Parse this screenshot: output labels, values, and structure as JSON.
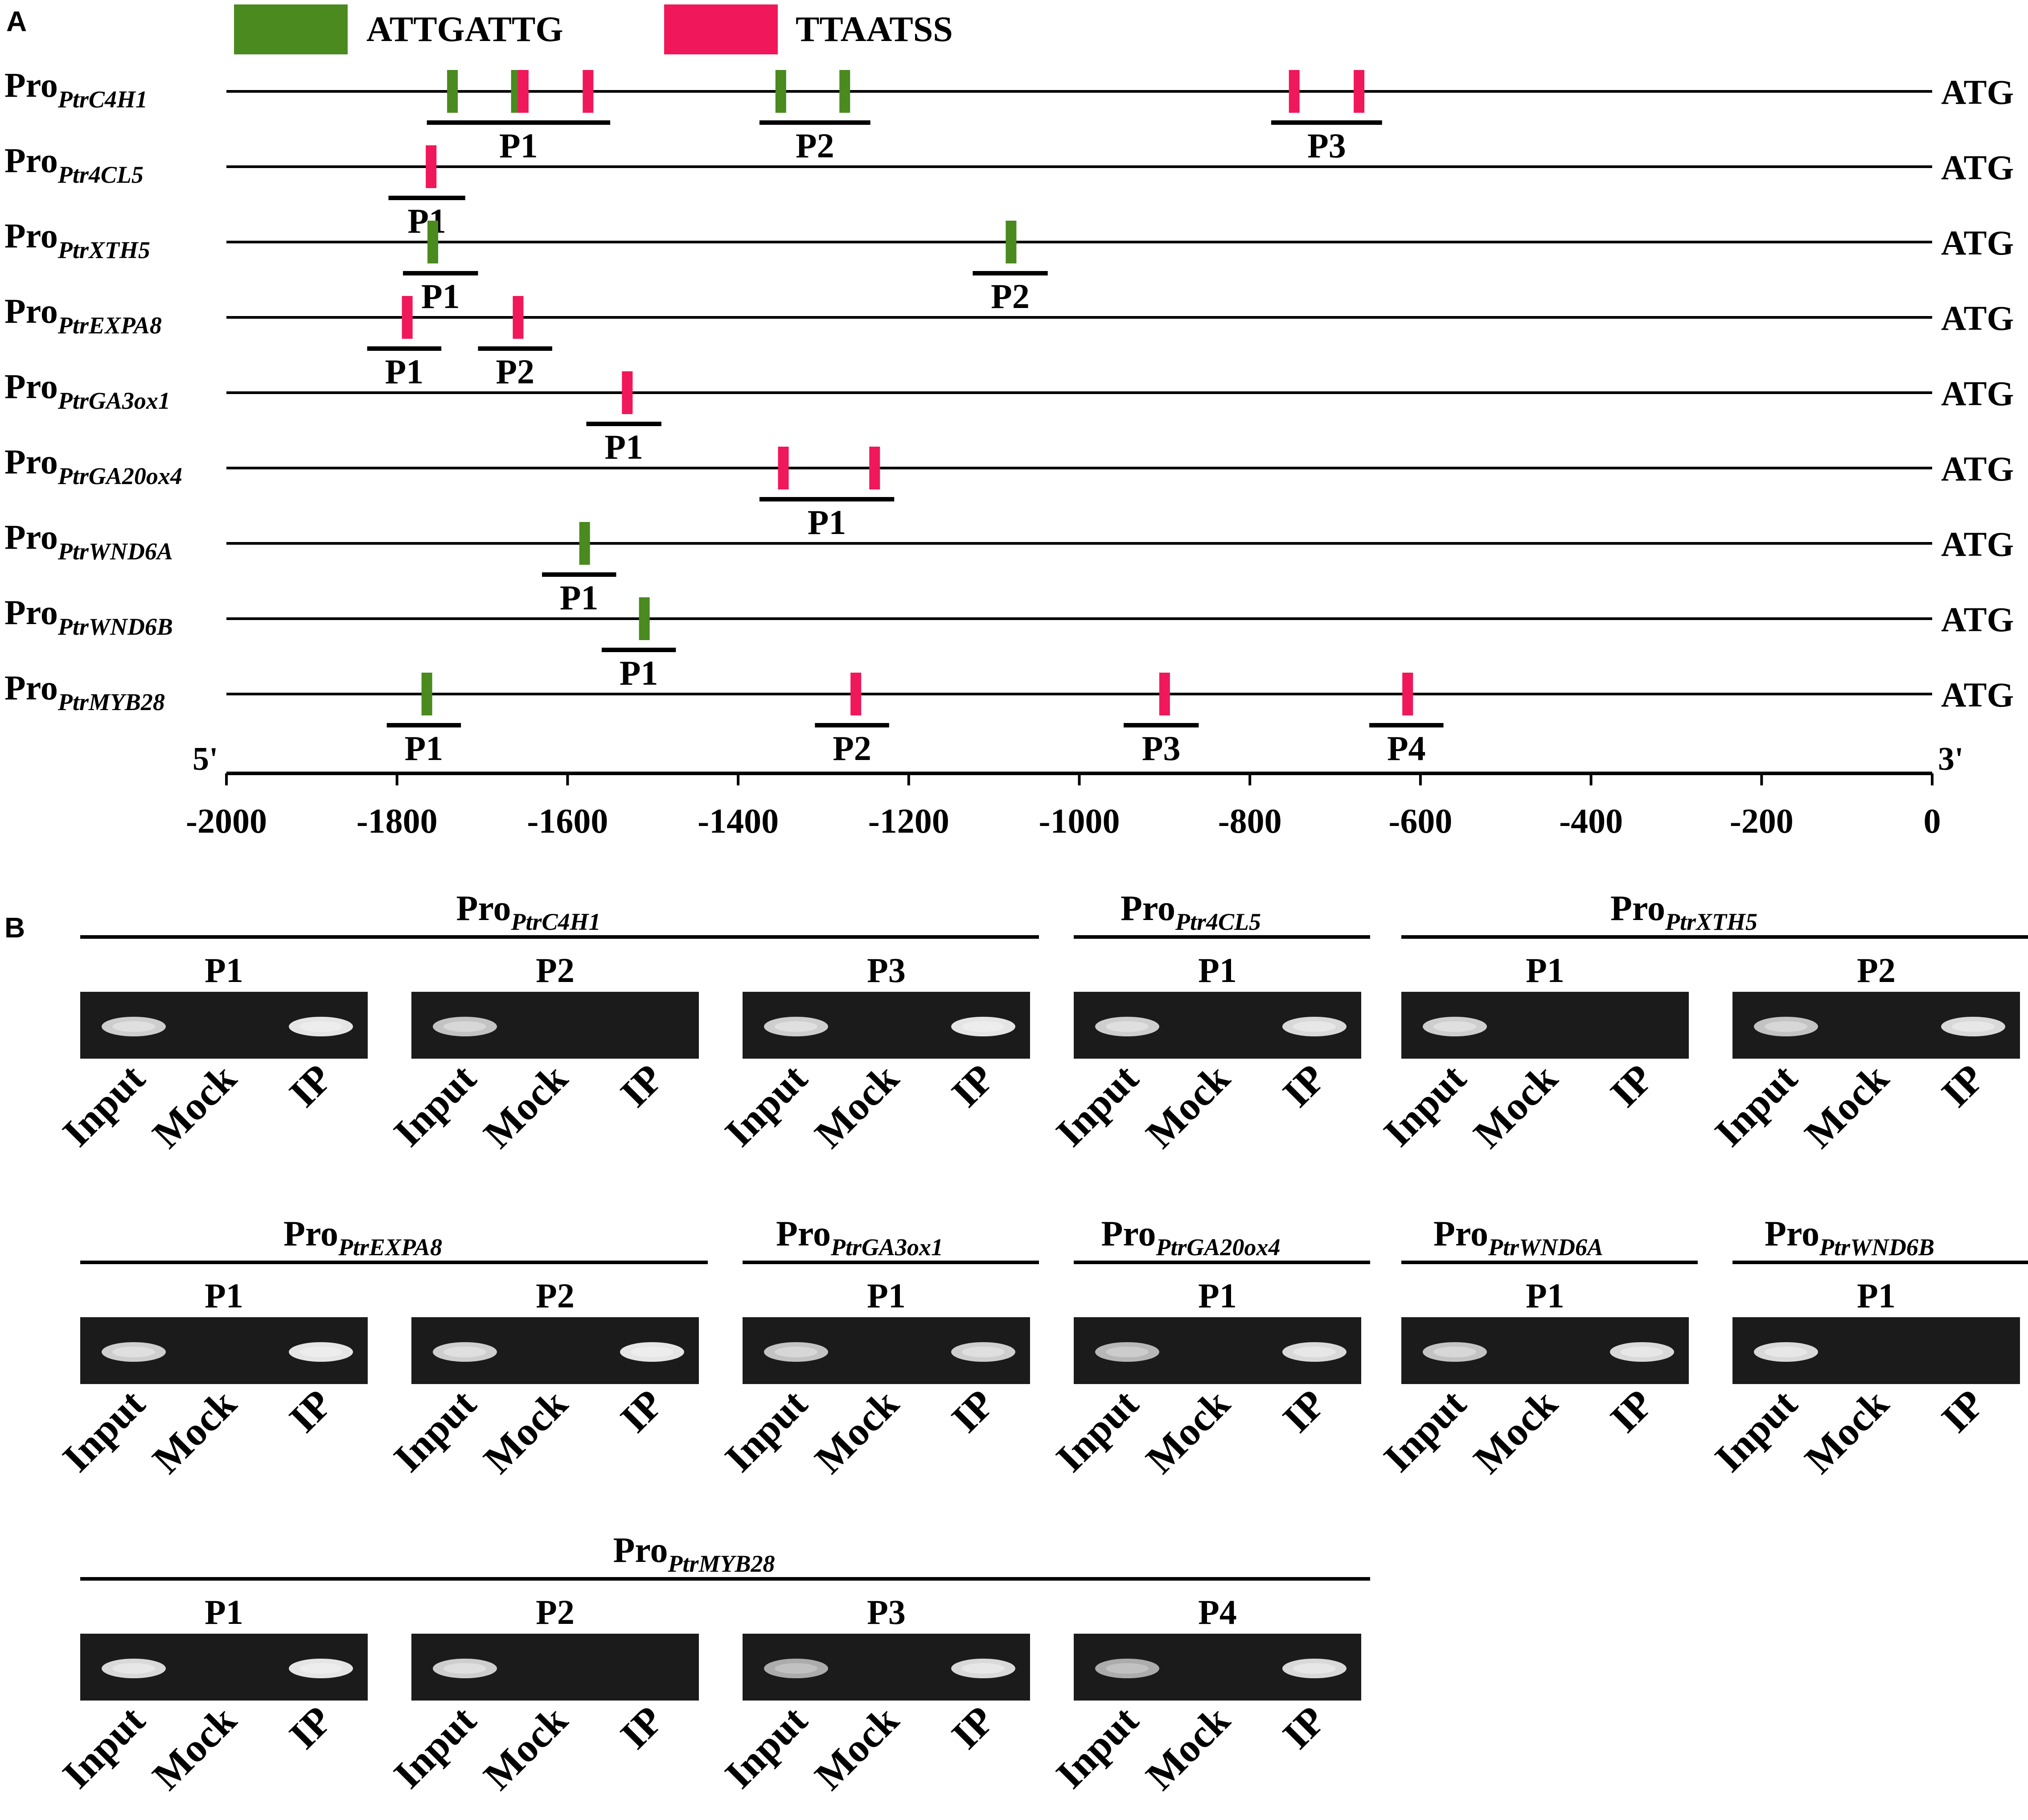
{
  "panel_a": {
    "letter": "A",
    "legend": [
      {
        "label": "ATTGATTG",
        "color": "#4a8a1e"
      },
      {
        "label": "TTAATSS",
        "color": "#f0185a"
      }
    ],
    "end_label": "ATG",
    "five_prime": "5'",
    "three_prime": "3'",
    "axis": {
      "min": -2000,
      "max": 0,
      "ticks": [
        "-2000",
        "-1800",
        "-1600",
        "-1400",
        "-1200",
        "-1000",
        "-800",
        "-600",
        "-400",
        "-200",
        "0"
      ]
    },
    "promoters": [
      {
        "prefix": "Pro",
        "name": "PtrC4H1",
        "sites": [
          {
            "type": 0,
            "pos": -1735
          },
          {
            "type": 0,
            "pos": -1660
          },
          {
            "type": 1,
            "pos": -1652
          },
          {
            "type": 1,
            "pos": -1576
          },
          {
            "type": 0,
            "pos": -1350
          },
          {
            "type": 0,
            "pos": -1275
          },
          {
            "type": 1,
            "pos": -748
          },
          {
            "type": 1,
            "pos": -672
          }
        ],
        "probes": [
          {
            "label": "P1",
            "start": -1765,
            "end": -1550
          },
          {
            "label": "P2",
            "start": -1375,
            "end": -1245
          },
          {
            "label": "P3",
            "start": -775,
            "end": -645
          }
        ]
      },
      {
        "prefix": "Pro",
        "name": "Ptr4CL5",
        "sites": [
          {
            "type": 1,
            "pos": -1760
          }
        ],
        "probes": [
          {
            "label": "P1",
            "start": -1810,
            "end": -1720
          }
        ]
      },
      {
        "prefix": "Pro",
        "name": "PtrXTH5",
        "sites": [
          {
            "type": 0,
            "pos": -1758
          },
          {
            "type": 0,
            "pos": -1080
          }
        ],
        "probes": [
          {
            "label": "P1",
            "start": -1793,
            "end": -1705
          },
          {
            "label": "P2",
            "start": -1125,
            "end": -1037
          }
        ]
      },
      {
        "prefix": "Pro",
        "name": "PtrEXPA8",
        "sites": [
          {
            "type": 1,
            "pos": -1788
          },
          {
            "type": 1,
            "pos": -1658
          }
        ],
        "probes": [
          {
            "label": "P1",
            "start": -1835,
            "end": -1748
          },
          {
            "label": "P2",
            "start": -1705,
            "end": -1618
          }
        ]
      },
      {
        "prefix": "Pro",
        "name": "PtrGA3ox1",
        "sites": [
          {
            "type": 1,
            "pos": -1530
          }
        ],
        "probes": [
          {
            "label": "P1",
            "start": -1578,
            "end": -1490
          }
        ]
      },
      {
        "prefix": "Pro",
        "name": "PtrGA20ox4",
        "sites": [
          {
            "type": 1,
            "pos": -1347
          },
          {
            "type": 1,
            "pos": -1240
          }
        ],
        "probes": [
          {
            "label": "P1",
            "start": -1375,
            "end": -1217
          }
        ]
      },
      {
        "prefix": "Pro",
        "name": "PtrWND6A",
        "sites": [
          {
            "type": 0,
            "pos": -1580
          }
        ],
        "probes": [
          {
            "label": "P1",
            "start": -1630,
            "end": -1543
          }
        ]
      },
      {
        "prefix": "Pro",
        "name": "PtrWND6B",
        "sites": [
          {
            "type": 0,
            "pos": -1510
          }
        ],
        "probes": [
          {
            "label": "P1",
            "start": -1560,
            "end": -1473
          }
        ]
      },
      {
        "prefix": "Pro",
        "name": "PtrMYB28",
        "sites": [
          {
            "type": 0,
            "pos": -1765
          },
          {
            "type": 1,
            "pos": -1262
          },
          {
            "type": 1,
            "pos": -900
          },
          {
            "type": 1,
            "pos": -615
          }
        ],
        "probes": [
          {
            "label": "P1",
            "start": -1812,
            "end": -1725
          },
          {
            "label": "P2",
            "start": -1310,
            "end": -1223
          },
          {
            "label": "P3",
            "start": -948,
            "end": -860
          },
          {
            "label": "P4",
            "start": -660,
            "end": -573
          }
        ]
      }
    ]
  },
  "panel_b": {
    "letter": "B",
    "lanes": [
      "Input",
      "Mock",
      "IP"
    ],
    "groups": [
      {
        "prefix": "Pro",
        "name": "PtrC4H1",
        "probes": [
          {
            "label": "P1",
            "bands": [
              0.8,
              0,
              1
            ]
          },
          {
            "label": "P2",
            "bands": [
              0.7,
              0,
              0
            ]
          },
          {
            "label": "P3",
            "bands": [
              0.8,
              0,
              1
            ]
          }
        ]
      },
      {
        "prefix": "Pro",
        "name": "Ptr4CL5",
        "probes": [
          {
            "label": "P1",
            "bands": [
              0.8,
              0,
              0.9
            ]
          }
        ]
      },
      {
        "prefix": "Pro",
        "name": "PtrXTH5",
        "probes": [
          {
            "label": "P1",
            "bands": [
              0.8,
              0,
              0
            ]
          },
          {
            "label": "P2",
            "bands": [
              0.7,
              0,
              0.9
            ]
          }
        ]
      },
      {
        "prefix": "Pro",
        "name": "PtrEXPA8",
        "probes": [
          {
            "label": "P1",
            "bands": [
              0.8,
              0,
              1
            ]
          },
          {
            "label": "P2",
            "bands": [
              0.8,
              0,
              1
            ]
          }
        ]
      },
      {
        "prefix": "Pro",
        "name": "PtrGA3ox1",
        "probes": [
          {
            "label": "P1",
            "bands": [
              0.7,
              0,
              0.8
            ]
          }
        ]
      },
      {
        "prefix": "Pro",
        "name": "PtrGA20ox4",
        "probes": [
          {
            "label": "P1",
            "bands": [
              0.6,
              0,
              0.9
            ]
          }
        ]
      },
      {
        "prefix": "Pro",
        "name": "PtrWND6A",
        "probes": [
          {
            "label": "P1",
            "bands": [
              0.7,
              0,
              0.9
            ]
          }
        ]
      },
      {
        "prefix": "Pro",
        "name": "PtrWND6B",
        "probes": [
          {
            "label": "P1",
            "bands": [
              0.9,
              0,
              0
            ]
          }
        ]
      },
      {
        "prefix": "Pro",
        "name": "PtrMYB28",
        "probes": [
          {
            "label": "P1",
            "bands": [
              0.9,
              0,
              1
            ]
          },
          {
            "label": "P2",
            "bands": [
              0.8,
              0,
              0
            ]
          },
          {
            "label": "P3",
            "bands": [
              0.5,
              0,
              0.9
            ]
          },
          {
            "label": "P4",
            "bands": [
              0.5,
              0,
              0.9
            ]
          }
        ]
      }
    ]
  }
}
